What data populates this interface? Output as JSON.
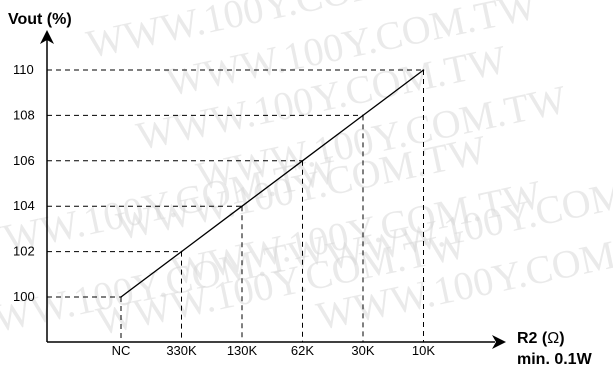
{
  "chart_data": {
    "type": "line",
    "ylabel": "Vout (%)",
    "xlabel_line1_name": "R2 (",
    "xlabel_line1_symbol": "Ω",
    "xlabel_line1_close": ")",
    "xlabel_line2": "min. 0.1W",
    "categories": [
      "NC",
      "330K",
      "130K",
      "62K",
      "30K",
      "10K"
    ],
    "y_ticks": [
      100,
      102,
      104,
      106,
      108,
      110
    ],
    "values": [
      100,
      102,
      104,
      106,
      108,
      110
    ],
    "ylim": [
      100,
      110
    ],
    "grid": "dashed-guides",
    "series_color": "#000000",
    "watermark_text": "WWW.100Y.COM.TW"
  }
}
